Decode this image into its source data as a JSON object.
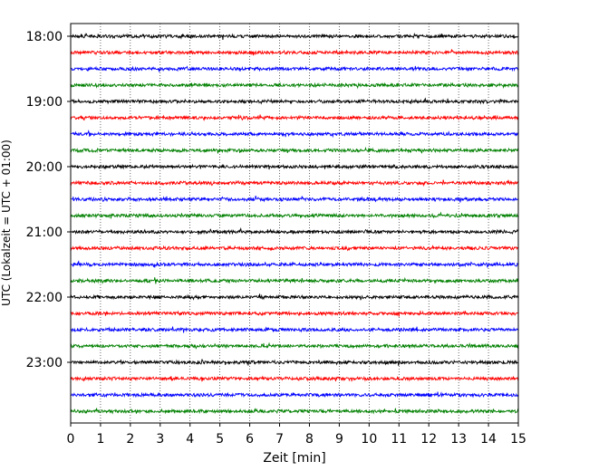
{
  "chart_data": {
    "type": "line",
    "title": "",
    "xlabel": "Zeit  [min]",
    "ylabel": "UTC (Lokalzeit = UTC + 01:00)",
    "xlim": [
      0,
      15
    ],
    "x_ticks": [
      0,
      1,
      2,
      3,
      4,
      5,
      6,
      7,
      8,
      9,
      10,
      11,
      12,
      13,
      14,
      15
    ],
    "y_time_start": "18:00",
    "y_time_end": "23:45",
    "y_tick_labels": [
      "18:00",
      "19:00",
      "20:00",
      "21:00",
      "22:00",
      "23:00"
    ],
    "row_interval_minutes": 15,
    "grid": {
      "x": true,
      "style": "dotted",
      "y": false
    },
    "color_cycle": [
      "#000000",
      "#ff0000",
      "#0000ff",
      "#008000"
    ],
    "series": [
      {
        "row_start": "18:00",
        "color": "#000000",
        "values": []
      },
      {
        "row_start": "18:15",
        "color": "#ff0000",
        "values": []
      },
      {
        "row_start": "18:30",
        "color": "#0000ff",
        "values": []
      },
      {
        "row_start": "18:45",
        "color": "#008000",
        "values": []
      },
      {
        "row_start": "19:00",
        "color": "#000000",
        "values": []
      },
      {
        "row_start": "19:15",
        "color": "#ff0000",
        "values": []
      },
      {
        "row_start": "19:30",
        "color": "#0000ff",
        "values": []
      },
      {
        "row_start": "19:45",
        "color": "#008000",
        "values": []
      },
      {
        "row_start": "20:00",
        "color": "#000000",
        "values": []
      },
      {
        "row_start": "20:15",
        "color": "#ff0000",
        "values": []
      },
      {
        "row_start": "20:30",
        "color": "#0000ff",
        "values": []
      },
      {
        "row_start": "20:45",
        "color": "#008000",
        "values": []
      },
      {
        "row_start": "21:00",
        "color": "#000000",
        "values": []
      },
      {
        "row_start": "21:15",
        "color": "#ff0000",
        "values": []
      },
      {
        "row_start": "21:30",
        "color": "#0000ff",
        "values": []
      },
      {
        "row_start": "21:45",
        "color": "#008000",
        "values": []
      },
      {
        "row_start": "22:00",
        "color": "#000000",
        "values": []
      },
      {
        "row_start": "22:15",
        "color": "#ff0000",
        "values": []
      },
      {
        "row_start": "22:30",
        "color": "#0000ff",
        "values": []
      },
      {
        "row_start": "22:45",
        "color": "#008000",
        "values": []
      },
      {
        "row_start": "23:00",
        "color": "#000000",
        "values": []
      },
      {
        "row_start": "23:15",
        "color": "#ff0000",
        "values": []
      },
      {
        "row_start": "23:30",
        "color": "#0000ff",
        "values": []
      },
      {
        "row_start": "23:45",
        "color": "#008000",
        "values": []
      }
    ]
  }
}
